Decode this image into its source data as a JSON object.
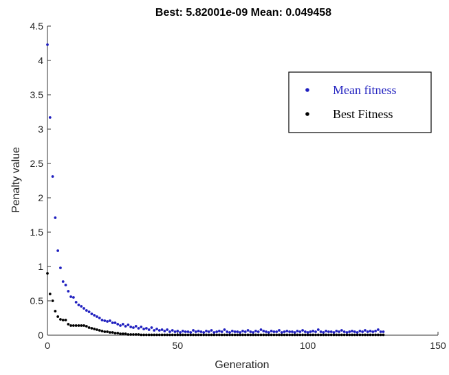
{
  "chart_data": {
    "type": "scatter",
    "title": "Best: 5.82001e-09 Mean: 0.049458",
    "xlabel": "Generation",
    "ylabel": "Penalty value",
    "xlim": [
      0,
      150
    ],
    "ylim": [
      0,
      4.5
    ],
    "xticks": [
      "0",
      "50",
      "100",
      "150"
    ],
    "yticks": [
      "0",
      "0.5",
      "1",
      "1.5",
      "2",
      "2.5",
      "3",
      "3.5",
      "4",
      "4.5"
    ],
    "legend_position": "top-right",
    "series": [
      {
        "name": "Mean fitness",
        "color": "#1f1fbf",
        "x": [
          0,
          1,
          2,
          3,
          4,
          5,
          6,
          7,
          8,
          9,
          10,
          11,
          12,
          13,
          14,
          15,
          16,
          17,
          18,
          19,
          20,
          21,
          22,
          23,
          24,
          25,
          26,
          27,
          28,
          29,
          30,
          31,
          32,
          33,
          34,
          35,
          36,
          37,
          38,
          39,
          40,
          41,
          42,
          43,
          44,
          45,
          46,
          47,
          48,
          49,
          50,
          51,
          52,
          53,
          54,
          55,
          56,
          57,
          58,
          59,
          60,
          61,
          62,
          63,
          64,
          65,
          66,
          67,
          68,
          69,
          70,
          71,
          72,
          73,
          74,
          75,
          76,
          77,
          78,
          79,
          80,
          81,
          82,
          83,
          84,
          85,
          86,
          87,
          88,
          89,
          90,
          91,
          92,
          93,
          94,
          95,
          96,
          97,
          98,
          99,
          100,
          101,
          102,
          103,
          104,
          105,
          106,
          107,
          108,
          109,
          110,
          111,
          112,
          113,
          114,
          115,
          116,
          117,
          118,
          119,
          120,
          121,
          122,
          123,
          124,
          125,
          126,
          127,
          128,
          129
        ],
        "y": [
          4.23,
          3.17,
          2.31,
          1.71,
          1.23,
          0.98,
          0.78,
          0.73,
          0.64,
          0.56,
          0.55,
          0.48,
          0.44,
          0.42,
          0.39,
          0.36,
          0.34,
          0.31,
          0.29,
          0.27,
          0.25,
          0.22,
          0.21,
          0.2,
          0.21,
          0.18,
          0.18,
          0.16,
          0.14,
          0.16,
          0.13,
          0.15,
          0.12,
          0.11,
          0.13,
          0.1,
          0.12,
          0.09,
          0.1,
          0.08,
          0.11,
          0.07,
          0.09,
          0.07,
          0.08,
          0.06,
          0.08,
          0.05,
          0.07,
          0.05,
          0.06,
          0.04,
          0.06,
          0.05,
          0.05,
          0.04,
          0.07,
          0.05,
          0.06,
          0.05,
          0.04,
          0.06,
          0.05,
          0.07,
          0.04,
          0.05,
          0.06,
          0.05,
          0.08,
          0.05,
          0.04,
          0.06,
          0.05,
          0.05,
          0.04,
          0.06,
          0.05,
          0.07,
          0.05,
          0.04,
          0.06,
          0.05,
          0.08,
          0.06,
          0.05,
          0.04,
          0.06,
          0.05,
          0.05,
          0.07,
          0.04,
          0.05,
          0.06,
          0.05,
          0.05,
          0.04,
          0.06,
          0.05,
          0.07,
          0.05,
          0.04,
          0.05,
          0.06,
          0.05,
          0.08,
          0.05,
          0.04,
          0.06,
          0.05,
          0.05,
          0.04,
          0.06,
          0.05,
          0.07,
          0.05,
          0.04,
          0.05,
          0.06,
          0.05,
          0.04,
          0.06,
          0.05,
          0.07,
          0.05,
          0.06,
          0.05,
          0.06,
          0.08,
          0.05,
          0.05
        ]
      },
      {
        "name": "Best Fitness",
        "color": "#000000",
        "x": [
          0,
          1,
          2,
          3,
          4,
          5,
          6,
          7,
          8,
          9,
          10,
          11,
          12,
          13,
          14,
          15,
          16,
          17,
          18,
          19,
          20,
          21,
          22,
          23,
          24,
          25,
          26,
          27,
          28,
          29,
          30,
          31,
          32,
          33,
          34,
          35,
          36,
          37,
          38,
          39,
          40,
          41,
          42,
          43,
          44,
          45,
          46,
          47,
          48,
          49,
          50,
          51,
          52,
          53,
          54,
          55,
          56,
          57,
          58,
          59,
          60,
          61,
          62,
          63,
          64,
          65,
          66,
          67,
          68,
          69,
          70,
          71,
          72,
          73,
          74,
          75,
          76,
          77,
          78,
          79,
          80,
          81,
          82,
          83,
          84,
          85,
          86,
          87,
          88,
          89,
          90,
          91,
          92,
          93,
          94,
          95,
          96,
          97,
          98,
          99,
          100,
          101,
          102,
          103,
          104,
          105,
          106,
          107,
          108,
          109,
          110,
          111,
          112,
          113,
          114,
          115,
          116,
          117,
          118,
          119,
          120,
          121,
          122,
          123,
          124,
          125,
          126,
          127,
          128,
          129
        ],
        "y": [
          0.9,
          0.6,
          0.5,
          0.35,
          0.27,
          0.23,
          0.22,
          0.22,
          0.16,
          0.14,
          0.14,
          0.14,
          0.14,
          0.14,
          0.14,
          0.13,
          0.11,
          0.1,
          0.09,
          0.08,
          0.07,
          0.06,
          0.05,
          0.05,
          0.04,
          0.04,
          0.03,
          0.03,
          0.02,
          0.02,
          0.02,
          0.01,
          0.01,
          0.01,
          0.01,
          0.01,
          0.005,
          0.005,
          0.005,
          0.005,
          0.005,
          0.005,
          0.005,
          0.005,
          0.005,
          0.005,
          0.005,
          0.005,
          0.005,
          0.005,
          0.005,
          0.005,
          0.005,
          0.005,
          0.005,
          0.005,
          0.005,
          0.005,
          0.005,
          0.005,
          0.005,
          0.005,
          0.005,
          0.005,
          0.005,
          0.005,
          0.005,
          0.005,
          0.005,
          0.005,
          0.005,
          0.005,
          0.005,
          0.005,
          0.005,
          0.005,
          0.005,
          0.005,
          0.005,
          0.005,
          0.005,
          0.005,
          0.005,
          0.005,
          0.005,
          0.005,
          0.005,
          0.005,
          0.005,
          0.005,
          0.005,
          0.005,
          0.005,
          0.005,
          0.005,
          0.005,
          0.005,
          0.005,
          0.005,
          0.005,
          0.005,
          0.005,
          0.005,
          0.005,
          0.005,
          0.005,
          0.005,
          0.005,
          0.005,
          0.005,
          0.005,
          0.005,
          0.005,
          0.005,
          0.005,
          0.005,
          0.005,
          0.005,
          0.005,
          0.005,
          0.005,
          0.005,
          0.005,
          0.005,
          0.005,
          0.005,
          0.005,
          0.005,
          0.005,
          0.005
        ]
      }
    ]
  }
}
